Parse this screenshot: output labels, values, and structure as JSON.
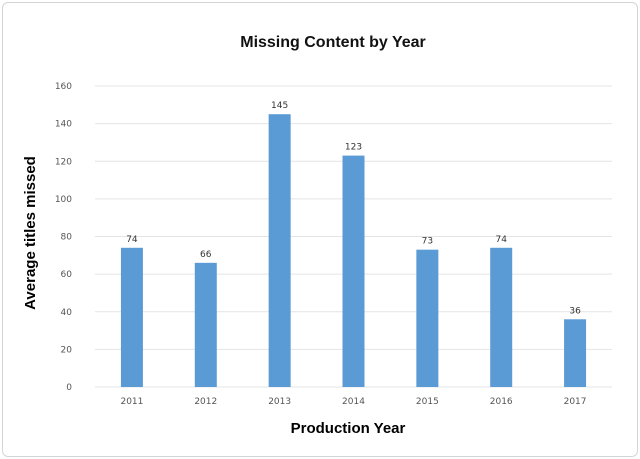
{
  "chart_data": {
    "type": "bar",
    "title": "Missing Content by Year",
    "xlabel": "Production Year",
    "ylabel": "Average titles missed",
    "categories": [
      "2011",
      "2012",
      "2013",
      "2014",
      "2015",
      "2016",
      "2017"
    ],
    "values": [
      74,
      66,
      145,
      123,
      73,
      74,
      36
    ],
    "ylim": [
      0,
      160
    ],
    "yticks": [
      0,
      20,
      40,
      60,
      80,
      100,
      120,
      140,
      160
    ],
    "grid": true,
    "legend": "none",
    "bar_color": "#5b9bd5",
    "gridline_color": "#e4e4e4"
  }
}
